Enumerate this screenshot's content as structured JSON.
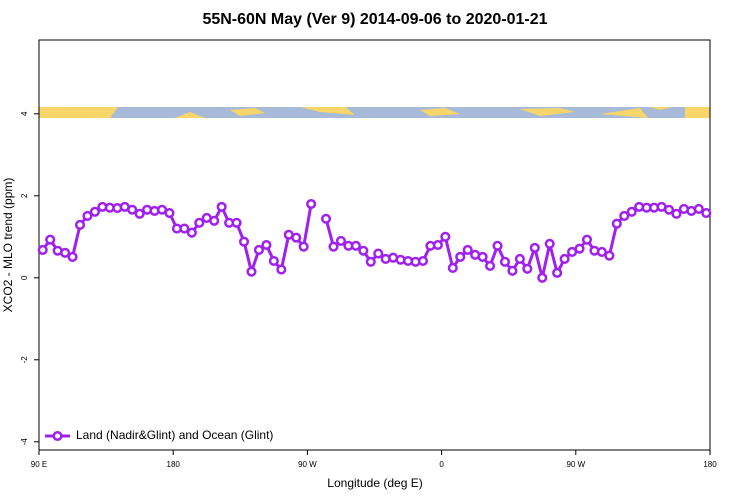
{
  "chart_data": {
    "type": "line",
    "title": "55N-60N May (Ver 9)   2014-09-06 to 2020-01-21",
    "x_label": "Longitude (deg E)",
    "y_label": "XCO2 - MLO trend (ppm)",
    "xlim": [
      90,
      540
    ],
    "ylim": [
      -4.2,
      5.8
    ],
    "xticks": [
      {
        "value": 90,
        "label": "90 E"
      },
      180,
      {
        "value": 270,
        "label": "90 W"
      },
      {
        "value": 360,
        "label": "0"
      },
      {
        "value": 450,
        "label": "90 W"
      },
      {
        "value": 540,
        "label": "180"
      }
    ],
    "yticks": [
      -4,
      -2,
      0,
      2,
      4
    ],
    "legend": "bottom-left",
    "x": [
      92.5,
      97.5,
      102.5,
      107.5,
      112.5,
      117.5,
      122.5,
      127.5,
      132.5,
      137.5,
      142.5,
      147.5,
      152.5,
      157.5,
      162.5,
      167.5,
      172.5,
      177.5,
      182.5,
      187.5,
      192.5,
      197.5,
      202.5,
      207.5,
      212.5,
      217.5,
      222.5,
      227.5,
      232.5,
      237.5,
      242.5,
      247.5,
      252.5,
      257.5,
      262.5,
      267.5,
      272.5,
      277.5,
      282.5,
      287.5,
      292.5,
      297.5,
      302.5,
      307.5,
      312.5,
      317.5,
      322.5,
      327.5,
      332.5,
      337.5,
      342.5,
      347.5,
      352.5,
      357.5,
      362.5,
      367.5,
      372.5,
      377.5,
      382.5,
      387.5,
      392.5,
      397.5,
      402.5,
      407.5,
      412.5,
      417.5,
      422.5,
      427.5,
      432.5,
      437.5,
      442.5,
      447.5,
      452.5,
      457.5,
      462.5,
      467.5,
      472.5,
      477.5,
      482.5,
      487.5,
      492.5,
      497.5,
      502.5,
      507.5,
      512.5,
      517.5,
      522.5,
      527.5,
      532.5,
      537.5
    ],
    "series": [
      {
        "name": "Land (Nadir&Glint) and Ocean (Glint)",
        "color": "#a020f0",
        "values": [
          0.68,
          0.93,
          0.66,
          0.61,
          0.51,
          1.29,
          1.51,
          1.61,
          1.73,
          1.71,
          1.7,
          1.73,
          1.66,
          1.56,
          1.66,
          1.63,
          1.66,
          1.58,
          1.2,
          1.2,
          1.1,
          1.34,
          1.46,
          1.39,
          1.73,
          1.34,
          1.34,
          0.88,
          0.15,
          0.68,
          0.8,
          0.41,
          0.2,
          1.05,
          0.98,
          0.76,
          1.8,
          null,
          1.44,
          0.76,
          0.9,
          0.78,
          0.78,
          0.66,
          0.39,
          0.59,
          0.46,
          0.49,
          0.44,
          0.41,
          0.39,
          0.41,
          0.78,
          0.8,
          1.0,
          0.24,
          0.51,
          0.68,
          0.56,
          0.51,
          0.29,
          0.78,
          0.39,
          0.17,
          0.46,
          0.22,
          0.73,
          0.0,
          0.83,
          0.12,
          0.46,
          0.63,
          0.71,
          0.93,
          0.66,
          0.63,
          0.54,
          1.32,
          1.51,
          1.61,
          1.73,
          1.71,
          1.71,
          1.73,
          1.66,
          1.56,
          1.68,
          1.63,
          1.68,
          1.58
        ]
      }
    ]
  }
}
